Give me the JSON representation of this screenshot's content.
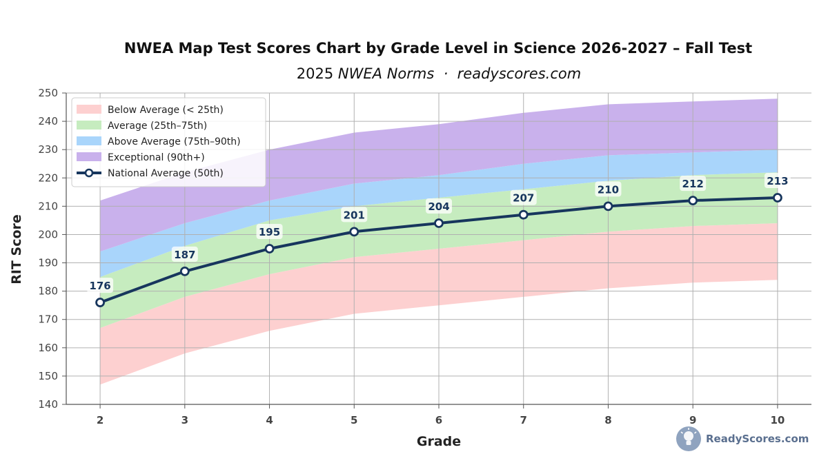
{
  "chart_data": {
    "type": "area",
    "title": "NWEA Map Test Scores Chart by Grade Level in Science 2026-2027 – Fall Test",
    "subtitle_prefix": "2025 ",
    "subtitle_italic": "NWEA Norms  ·  readyscores.com",
    "xlabel": "Grade",
    "ylabel": "RIT Score",
    "x": [
      2,
      3,
      4,
      5,
      6,
      7,
      8,
      9,
      10
    ],
    "xlim": [
      1.6,
      10.4
    ],
    "ylim": [
      140,
      250
    ],
    "yticks": [
      140,
      150,
      160,
      170,
      180,
      190,
      200,
      210,
      220,
      230,
      240,
      250
    ],
    "grid": true,
    "legend_position": "top-left",
    "bands": [
      {
        "name": "Below Average (< 25th)",
        "color": "#fdd0d0",
        "lower": [
          147,
          158,
          166,
          172,
          175,
          178,
          181,
          183,
          184
        ],
        "upper": [
          167,
          178,
          186,
          192,
          195,
          198,
          201,
          203,
          204
        ]
      },
      {
        "name": "Average (25th–75th)",
        "color": "#c6ecbf",
        "lower": [
          167,
          178,
          186,
          192,
          195,
          198,
          201,
          203,
          204
        ],
        "upper": [
          185,
          196,
          205,
          210,
          213,
          216,
          219,
          221,
          222
        ]
      },
      {
        "name": "Above Average (75th–90th)",
        "color": "#a9d5fb",
        "lower": [
          185,
          196,
          205,
          210,
          213,
          216,
          219,
          221,
          222
        ],
        "upper": [
          194,
          204,
          212,
          218,
          221,
          225,
          228,
          229,
          230
        ]
      },
      {
        "name": "Exceptional (90th+)",
        "color": "#c9b1ec",
        "lower": [
          194,
          204,
          212,
          218,
          221,
          225,
          228,
          229,
          230
        ],
        "upper": [
          212,
          222,
          230,
          236,
          239,
          243,
          246,
          247,
          248
        ]
      }
    ],
    "series": [
      {
        "name": "National Average (50th)",
        "color": "#17365d",
        "values": [
          176,
          187,
          195,
          201,
          204,
          207,
          210,
          212,
          213
        ]
      }
    ]
  },
  "brand": {
    "name": "ReadyScores.com",
    "logo_color": "#8fa3bf"
  }
}
